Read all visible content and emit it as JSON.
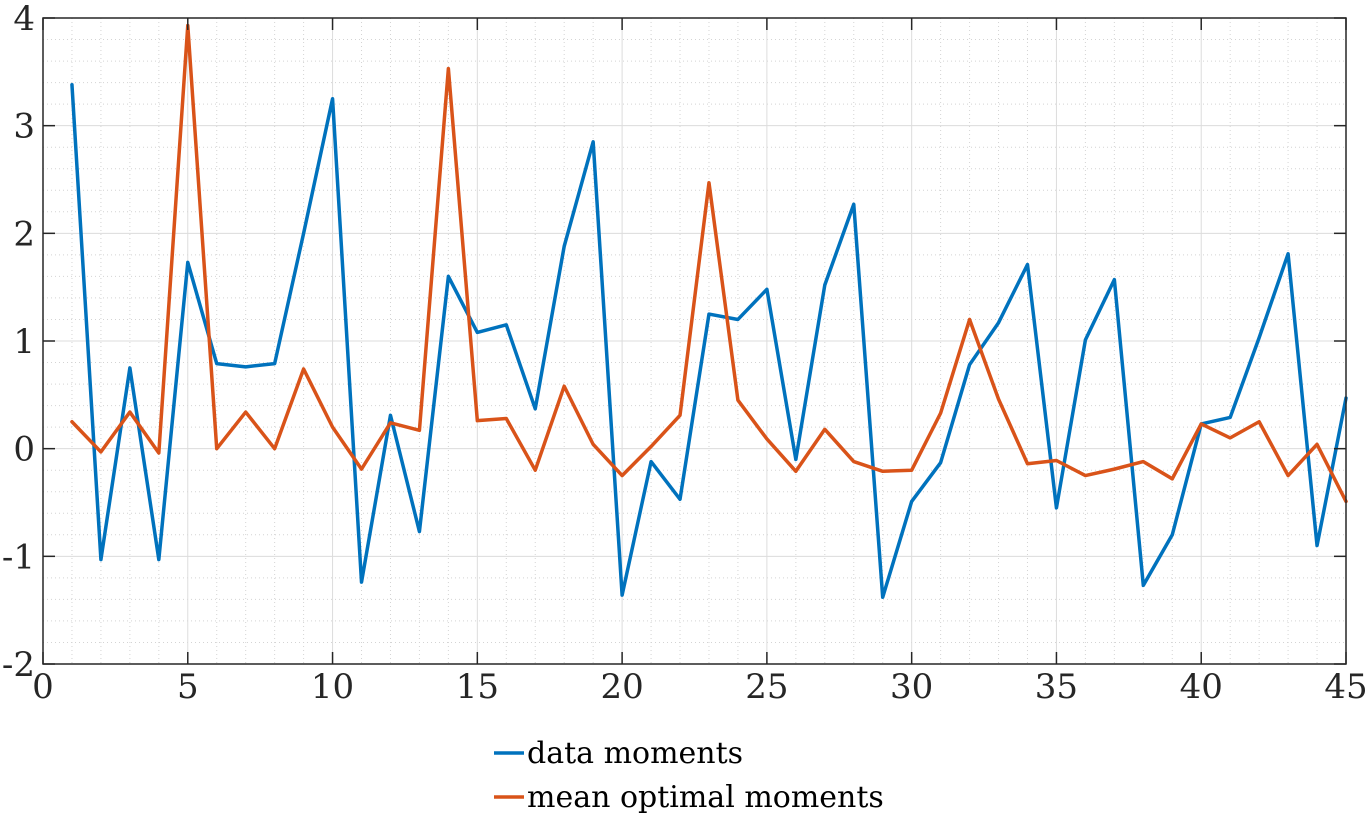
{
  "chart_data": {
    "type": "line",
    "title": "",
    "xlabel": "",
    "ylabel": "",
    "xlim": [
      0,
      45
    ],
    "ylim": [
      -2,
      4
    ],
    "xticks": [
      0,
      5,
      10,
      15,
      20,
      25,
      30,
      35,
      40,
      45
    ],
    "yticks": [
      -2,
      -1,
      0,
      1,
      2,
      3,
      4
    ],
    "grid": true,
    "minor_grid": true,
    "legend_position": "bottom-center-outside",
    "x": [
      1,
      2,
      3,
      4,
      5,
      6,
      7,
      8,
      9,
      10,
      11,
      12,
      13,
      14,
      15,
      16,
      17,
      18,
      19,
      20,
      21,
      22,
      23,
      24,
      25,
      26,
      27,
      28,
      29,
      30,
      31,
      32,
      33,
      34,
      35,
      36,
      37,
      38,
      39,
      40,
      41,
      42,
      43,
      44,
      45
    ],
    "series": [
      {
        "name": "data moments",
        "color": "#0072BD",
        "values": [
          3.38,
          -1.03,
          0.75,
          -1.03,
          1.73,
          0.79,
          0.76,
          0.79,
          2.0,
          3.25,
          -1.24,
          0.31,
          -0.77,
          1.6,
          1.08,
          1.15,
          0.37,
          1.88,
          2.85,
          -1.36,
          -0.12,
          -0.47,
          1.25,
          1.2,
          1.48,
          -0.1,
          1.52,
          2.27,
          -1.38,
          -0.49,
          -0.13,
          0.78,
          1.17,
          1.71,
          -0.55,
          1.01,
          1.57,
          -1.27,
          -0.8,
          0.23,
          0.29,
          1.03,
          1.81,
          -0.9,
          0.47
        ]
      },
      {
        "name": "mean optimal moments",
        "color": "#D95319",
        "values": [
          0.25,
          -0.03,
          0.34,
          -0.04,
          3.93,
          0.0,
          0.34,
          0.0,
          0.74,
          0.2,
          -0.19,
          0.24,
          0.17,
          3.53,
          0.26,
          0.28,
          -0.2,
          0.58,
          0.04,
          -0.25,
          0.02,
          0.31,
          2.47,
          0.45,
          0.09,
          -0.21,
          0.18,
          -0.12,
          -0.21,
          -0.2,
          0.33,
          1.2,
          0.46,
          -0.14,
          -0.11,
          -0.25,
          -0.19,
          -0.12,
          -0.28,
          0.23,
          0.1,
          0.25,
          -0.25,
          0.04,
          -0.49
        ]
      }
    ]
  }
}
